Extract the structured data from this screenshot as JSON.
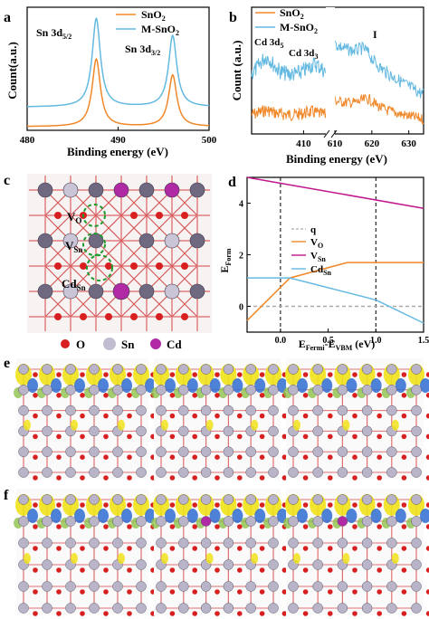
{
  "panels": {
    "a": "a",
    "b": "b",
    "c": "c",
    "d": "d",
    "e": "e",
    "f": "f"
  },
  "colors": {
    "sno2": "#f0882a",
    "msno2": "#63b9e0",
    "vo": "#f0882a",
    "vsn": "#c0178c",
    "cdsn": "#63b9e0",
    "q": "#aaaaaa",
    "oxygen": "#d82020",
    "tin": "#b9b4c8",
    "cadmium": "#b02aa6",
    "isosurface_yellow": "#f0e21a",
    "isosurface_blue": "#2f6bd1"
  },
  "chart_data": [
    {
      "panel": "a",
      "type": "line",
      "xlabel": "Binding energy (eV)",
      "ylabel": "Count(a.u.)",
      "xlim": [
        480,
        500
      ],
      "xticks": [
        "480",
        "490",
        "500"
      ],
      "annotations": [
        {
          "text": "Sn 3d5/2",
          "main": "Sn 3d",
          "sub": "5/2"
        },
        {
          "text": "Sn 3d3/2",
          "main": "Sn 3d",
          "sub": "3/2"
        }
      ],
      "legend_position": "top-right",
      "series": [
        {
          "name": "SnO2",
          "label_main": "SnO",
          "label_sub": "2",
          "peaks": [
            487.6,
            496.0
          ],
          "heights": [
            0.55,
            0.42
          ],
          "baseline": 0.0
        },
        {
          "name": "M-SnO2",
          "label_main": "M-SnO",
          "label_sub": "2",
          "peaks": [
            487.6,
            496.0
          ],
          "heights": [
            0.72,
            0.58
          ],
          "baseline": 0.16
        }
      ]
    },
    {
      "panel": "b",
      "type": "line",
      "xlabel": "Binding energy (eV)",
      "ylabel": "Count (a.u.)",
      "xlim": [
        403,
        634
      ],
      "axis_break": [
        413,
        610
      ],
      "xticks": [
        "410",
        "610",
        "620",
        "630"
      ],
      "annotations": [
        {
          "text": "Cd 3d5",
          "main": "Cd 3d",
          "sub": "5"
        },
        {
          "text": "Cd 3d3",
          "main": "Cd 3d",
          "sub": "3"
        },
        {
          "text": "I",
          "main": "I",
          "sub": ""
        }
      ],
      "legend_position": "top-left",
      "series": [
        {
          "name": "SnO2",
          "label_main": "SnO",
          "label_sub": "2"
        },
        {
          "name": "M-SnO2",
          "label_main": "M-SnO",
          "label_sub": "2"
        }
      ]
    },
    {
      "panel": "d",
      "type": "line",
      "xlabel_main": "E",
      "xlabel_sub1": "Fermi",
      "xlabel_mid": "-E",
      "xlabel_sub2": "VBM",
      "xlabel_tail": " (eV)",
      "ylabel_main": "E",
      "ylabel_sub": "Form",
      "xlim": [
        -0.35,
        1.5
      ],
      "ylim": [
        -1.0,
        5.0
      ],
      "xticks": [
        "0.0",
        "0.5",
        "1.0",
        "1.5"
      ],
      "yticks": [
        "0",
        "2",
        "4"
      ],
      "vlines": [
        0.0,
        1.0
      ],
      "series": [
        {
          "name": "q",
          "label_main": "q",
          "label_sub": "",
          "x": [
            -0.35,
            1.5
          ],
          "y": [
            0.0,
            0.0
          ],
          "style": "dashed"
        },
        {
          "name": "VO",
          "label_main": "V",
          "label_sub": "O",
          "x": [
            -0.35,
            0.1,
            0.7,
            1.5
          ],
          "y": [
            -0.55,
            1.1,
            1.7,
            1.7
          ]
        },
        {
          "name": "VSn",
          "label_main": "V",
          "label_sub": "Sn",
          "x": [
            -0.35,
            1.5
          ],
          "y": [
            5.0,
            3.8
          ]
        },
        {
          "name": "CdSn",
          "label_main": "Cd",
          "label_sub": "Sn",
          "x": [
            -0.35,
            0.1,
            1.0,
            1.5
          ],
          "y": [
            1.1,
            1.1,
            0.25,
            -0.65
          ]
        }
      ]
    }
  ],
  "panel_c": {
    "labels": [
      {
        "main": "V",
        "sub": "O"
      },
      {
        "main": "V",
        "sub": "Sn"
      },
      {
        "main": "Cd",
        "sub": "Sn"
      }
    ],
    "legend": [
      "O",
      "Sn",
      "Cd"
    ]
  }
}
